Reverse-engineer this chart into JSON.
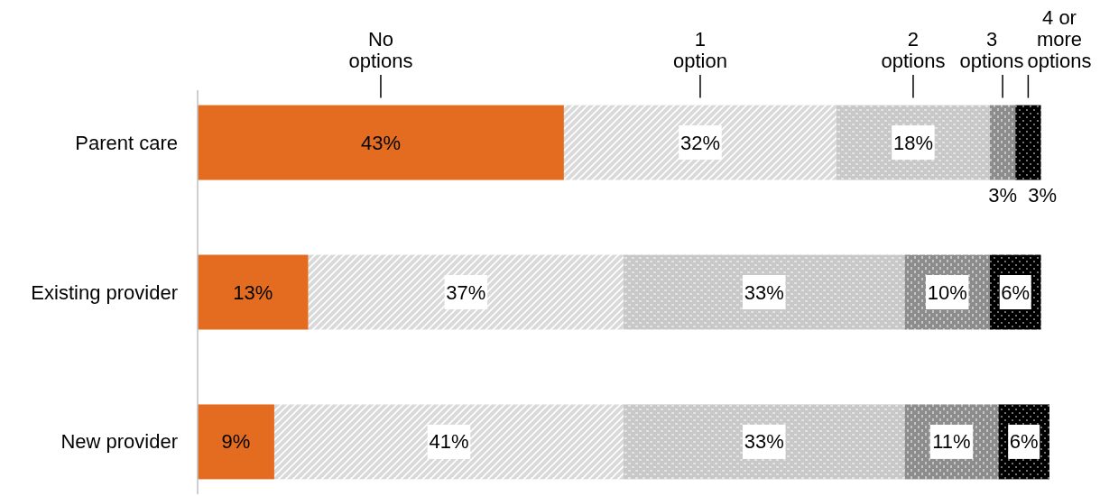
{
  "chart_data": {
    "type": "bar",
    "orientation": "horizontal",
    "stacked": true,
    "legend": "top",
    "categories": [
      "Parent care",
      "Existing provider",
      "New provider"
    ],
    "series": [
      {
        "name": "No options",
        "color": "#e36c21",
        "values": [
          43,
          13,
          9
        ],
        "value_labels": [
          "43%",
          "13%",
          "9%"
        ]
      },
      {
        "name": "1 option",
        "color": "#d9d9d9",
        "values": [
          32,
          37,
          41
        ],
        "value_labels": [
          "32%",
          "37%",
          "41%"
        ]
      },
      {
        "name": "2 options",
        "color": "#c8c8c8",
        "values": [
          18,
          33,
          33
        ],
        "value_labels": [
          "18%",
          "33%",
          "33%"
        ]
      },
      {
        "name": "3 options",
        "color": "#8c8c8c",
        "values": [
          3,
          10,
          11
        ],
        "value_labels": [
          "3%",
          "10%",
          "11%"
        ]
      },
      {
        "name": "4 or more options",
        "color": "#000000",
        "values": [
          3,
          6,
          6
        ],
        "value_labels": [
          "3%",
          "6%",
          "6%"
        ]
      }
    ]
  }
}
